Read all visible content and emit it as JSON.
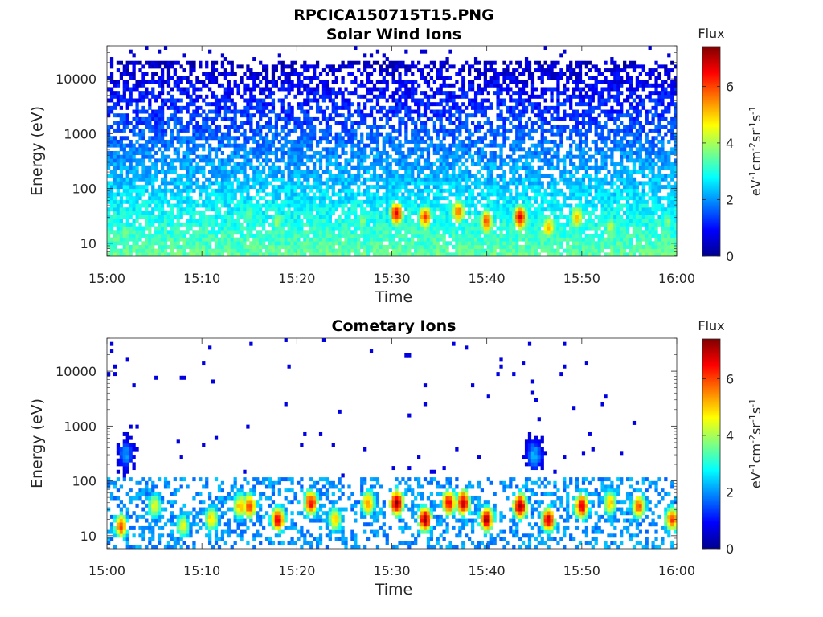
{
  "figure": {
    "filename": "RPCICA150715T15.PNG"
  },
  "chart_data": [
    {
      "type": "heatmap",
      "title": "Solar Wind Ions",
      "xlabel": "Time",
      "ylabel": "Energy (eV)",
      "x_range": [
        "15:00",
        "16:00"
      ],
      "x_ticks": [
        "15:00",
        "15:10",
        "15:20",
        "15:30",
        "15:40",
        "15:50",
        "16:00"
      ],
      "y_scale": "log",
      "y_range": [
        5.8,
        40000
      ],
      "y_ticks": [
        10,
        100,
        1000,
        10000
      ],
      "y_tick_labels": [
        "10",
        "100",
        "1000",
        "10000"
      ],
      "colormap": "jet",
      "colorbar": {
        "label": "Flux",
        "units": "eV-1cm-2sr-1s-1",
        "range": [
          0,
          7.4
        ],
        "ticks": [
          0,
          2,
          4,
          6
        ]
      },
      "background_level": {
        "energy_band": [
          6,
          20000
        ],
        "flux": [
          0.5,
          3.5
        ]
      },
      "hot_spots": [
        {
          "time": "15:02",
          "energy": 16,
          "flux": 3.8
        },
        {
          "time": "15:15",
          "energy": 35,
          "flux": 3.8
        },
        {
          "time": "15:18",
          "energy": 25,
          "flux": 4.0
        },
        {
          "time": "15:27",
          "energy": 25,
          "flux": 3.8
        },
        {
          "time": "15:30.5",
          "energy": 35,
          "flux": 6.5
        },
        {
          "time": "15:33.5",
          "energy": 30,
          "flux": 6.0
        },
        {
          "time": "15:37",
          "energy": 38,
          "flux": 5.8
        },
        {
          "time": "15:40",
          "energy": 25,
          "flux": 6.0
        },
        {
          "time": "15:43.5",
          "energy": 30,
          "flux": 6.5
        },
        {
          "time": "15:46.5",
          "energy": 20,
          "flux": 5.2
        },
        {
          "time": "15:49.5",
          "energy": 30,
          "flux": 5.0
        },
        {
          "time": "15:53",
          "energy": 20,
          "flux": 4.2
        },
        {
          "time": "15:59",
          "energy": 25,
          "flux": 3.8
        }
      ]
    },
    {
      "type": "heatmap",
      "title": "Cometary Ions",
      "xlabel": "Time",
      "ylabel": "Energy (eV)",
      "x_range": [
        "15:00",
        "16:00"
      ],
      "x_ticks": [
        "15:00",
        "15:10",
        "15:20",
        "15:30",
        "15:40",
        "15:50",
        "16:00"
      ],
      "y_scale": "log",
      "y_range": [
        5.8,
        40000
      ],
      "y_ticks": [
        10,
        100,
        1000,
        10000
      ],
      "y_tick_labels": [
        "10",
        "100",
        "1000",
        "10000"
      ],
      "colormap": "jet",
      "colorbar": {
        "label": "Flux",
        "units": "eV-1cm-2sr-1s-1",
        "range": [
          0,
          7.4
        ],
        "ticks": [
          0,
          2,
          4,
          6
        ]
      },
      "hot_spots": [
        {
          "time": "15:01.5",
          "energy": 15,
          "flux": 6.0
        },
        {
          "time": "15:02",
          "energy": 300,
          "flux": 2.0
        },
        {
          "time": "15:05",
          "energy": 35,
          "flux": 4.5
        },
        {
          "time": "15:08",
          "energy": 15,
          "flux": 4.5
        },
        {
          "time": "15:11",
          "energy": 20,
          "flux": 5.0
        },
        {
          "time": "15:14",
          "energy": 35,
          "flux": 5.2
        },
        {
          "time": "15:15",
          "energy": 35,
          "flux": 6.2
        },
        {
          "time": "15:18",
          "energy": 20,
          "flux": 6.8
        },
        {
          "time": "15:21.5",
          "energy": 40,
          "flux": 6.5
        },
        {
          "time": "15:24",
          "energy": 20,
          "flux": 5.0
        },
        {
          "time": "15:27.5",
          "energy": 40,
          "flux": 5.5
        },
        {
          "time": "15:30.5",
          "energy": 40,
          "flux": 7.2
        },
        {
          "time": "15:33.5",
          "energy": 20,
          "flux": 7.2
        },
        {
          "time": "15:36",
          "energy": 40,
          "flux": 6.5
        },
        {
          "time": "15:37.5",
          "energy": 40,
          "flux": 7.0
        },
        {
          "time": "15:40",
          "energy": 20,
          "flux": 7.2
        },
        {
          "time": "15:43.5",
          "energy": 35,
          "flux": 7.2
        },
        {
          "time": "15:45",
          "energy": 300,
          "flux": 2.2
        },
        {
          "time": "15:46.5",
          "energy": 20,
          "flux": 6.8
        },
        {
          "time": "15:50",
          "energy": 35,
          "flux": 6.8
        },
        {
          "time": "15:53",
          "energy": 40,
          "flux": 5.2
        },
        {
          "time": "15:56",
          "energy": 35,
          "flux": 6.0
        },
        {
          "time": "15:59.5",
          "energy": 20,
          "flux": 6.0
        }
      ]
    }
  ]
}
